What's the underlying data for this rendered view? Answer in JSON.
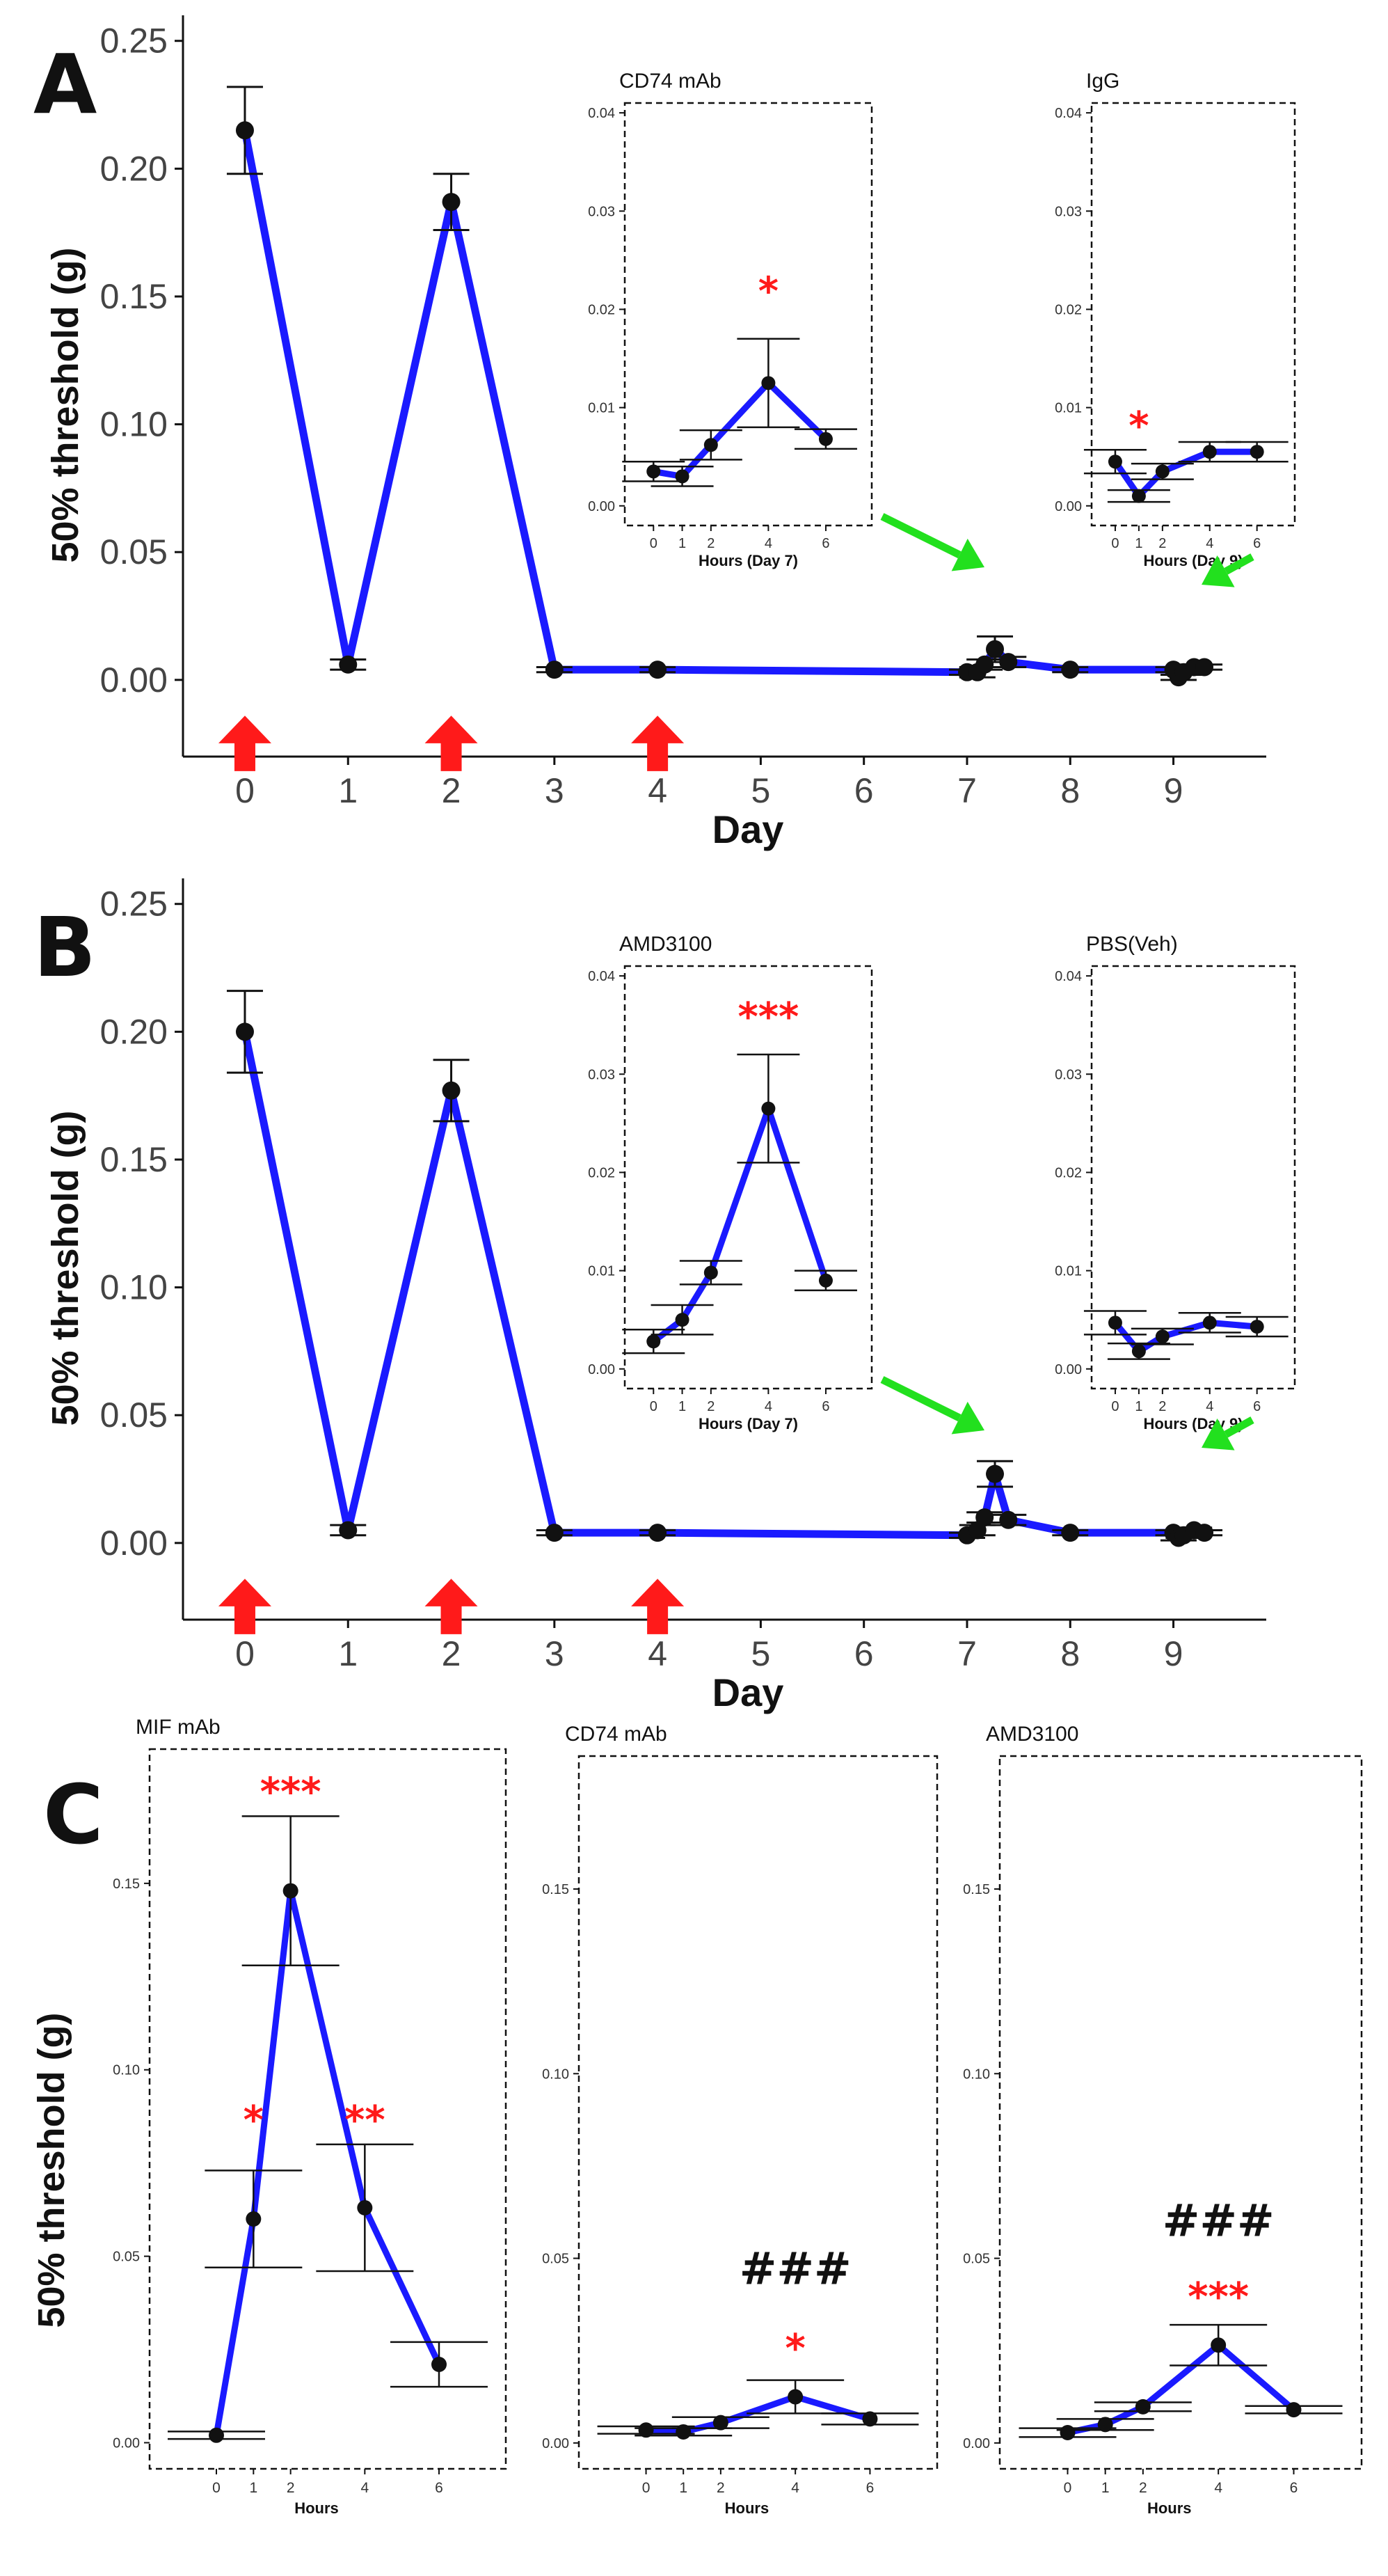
{
  "panels": [
    {
      "letter": "A",
      "chart_data": {
        "type": "line",
        "ylabel": "50% threshold (g)",
        "xlabel": "Day",
        "ylim": [
          -0.03,
          0.26
        ],
        "xlim": [
          -0.6,
          9.9
        ],
        "y_ticks": [
          0.0,
          0.05,
          0.1,
          0.15,
          0.2,
          0.25
        ],
        "y_tick_labels": [
          "0.00",
          "0.05",
          "0.10",
          "0.15",
          "0.20",
          "0.25"
        ],
        "x_ticks": [
          0,
          1,
          2,
          3,
          4,
          5,
          6,
          7,
          8,
          9
        ],
        "x_tick_labels": [
          "0",
          "1",
          "2",
          "3",
          "4",
          "5",
          "6",
          "7",
          "8",
          "9"
        ],
        "series_color": "#1a1aff",
        "points": [
          {
            "x": 0,
            "y": 0.215,
            "err": 0.017
          },
          {
            "x": 1,
            "y": 0.006,
            "err": 0.002
          },
          {
            "x": 2,
            "y": 0.187,
            "err": 0.011
          },
          {
            "x": 3,
            "y": 0.004,
            "err": 0.001
          },
          {
            "x": 4,
            "y": 0.004,
            "err": 0.001
          },
          {
            "x": 7,
            "y": 0.003,
            "err": 0.001
          },
          {
            "x": 7.1,
            "y": 0.003,
            "err": 0.002
          },
          {
            "x": 7.17,
            "y": 0.006,
            "err": 0.002
          },
          {
            "x": 7.27,
            "y": 0.012,
            "err": 0.005
          },
          {
            "x": 7.4,
            "y": 0.007,
            "err": 0.002
          },
          {
            "x": 8,
            "y": 0.004,
            "err": 0.001
          },
          {
            "x": 9,
            "y": 0.004,
            "err": 0.001
          },
          {
            "x": 9.05,
            "y": 0.001,
            "err": 0.001
          },
          {
            "x": 9.1,
            "y": 0.003,
            "err": 0.001
          },
          {
            "x": 9.2,
            "y": 0.005,
            "err": 0.001
          },
          {
            "x": 9.3,
            "y": 0.005,
            "err": 0.001
          }
        ],
        "red_arrows_x": [
          0,
          2,
          4
        ],
        "red_arrow_color": "#ff1a1a",
        "green_arrow_color": "#22e01e",
        "insets": [
          {
            "title": "CD74 mAb",
            "xlabel": "Hours (Day 7)",
            "ylim": [
              -0.002,
              0.041
            ],
            "xlim": [
              -1,
              7.6
            ],
            "y_ticks": [
              0.0,
              0.01,
              0.02,
              0.03,
              0.04
            ],
            "y_tick_labels": [
              "0.00",
              "0.01",
              "0.02",
              "0.03",
              "0.04"
            ],
            "x_ticks": [
              0,
              1,
              2,
              4,
              6
            ],
            "x_tick_labels": [
              "0",
              "1",
              "2",
              "4",
              "6"
            ],
            "points": [
              {
                "x": 0,
                "y": 0.0035,
                "err": 0.001
              },
              {
                "x": 1,
                "y": 0.003,
                "err": 0.001
              },
              {
                "x": 2,
                "y": 0.0062,
                "err": 0.0015
              },
              {
                "x": 4,
                "y": 0.0125,
                "err": 0.0045
              },
              {
                "x": 6,
                "y": 0.0068,
                "err": 0.001
              }
            ],
            "annotations": [
              {
                "text": "*",
                "x": 4,
                "y": 0.0205,
                "color": "#ff1a1a"
              }
            ]
          },
          {
            "title": "IgG",
            "xlabel": "Hours (Day 9)",
            "ylim": [
              -0.002,
              0.041
            ],
            "xlim": [
              -1,
              7.6
            ],
            "y_ticks": [
              0.0,
              0.01,
              0.02,
              0.03,
              0.04
            ],
            "y_tick_labels": [
              "0.00",
              "0.01",
              "0.02",
              "0.03",
              "0.04"
            ],
            "x_ticks": [
              0,
              1,
              2,
              4,
              6
            ],
            "x_tick_labels": [
              "0",
              "1",
              "2",
              "4",
              "6"
            ],
            "points": [
              {
                "x": 0,
                "y": 0.0045,
                "err": 0.0012
              },
              {
                "x": 1,
                "y": 0.001,
                "err": 0.0006
              },
              {
                "x": 2,
                "y": 0.0035,
                "err": 0.0008
              },
              {
                "x": 4,
                "y": 0.0055,
                "err": 0.001
              },
              {
                "x": 6,
                "y": 0.0055,
                "err": 0.001
              }
            ],
            "annotations": [
              {
                "text": "*",
                "x": 1,
                "y": 0.0068,
                "color": "#ff1a1a"
              }
            ]
          }
        ]
      }
    },
    {
      "letter": "B",
      "chart_data": {
        "type": "line",
        "ylabel": "50% threshold (g)",
        "xlabel": "Day",
        "ylim": [
          -0.03,
          0.26
        ],
        "xlim": [
          -0.6,
          9.9
        ],
        "y_ticks": [
          0.0,
          0.05,
          0.1,
          0.15,
          0.2,
          0.25
        ],
        "y_tick_labels": [
          "0.00",
          "0.05",
          "0.10",
          "0.15",
          "0.20",
          "0.25"
        ],
        "x_ticks": [
          0,
          1,
          2,
          3,
          4,
          5,
          6,
          7,
          8,
          9
        ],
        "x_tick_labels": [
          "0",
          "1",
          "2",
          "3",
          "4",
          "5",
          "6",
          "7",
          "8",
          "9"
        ],
        "series_color": "#1a1aff",
        "points": [
          {
            "x": 0,
            "y": 0.2,
            "err": 0.016
          },
          {
            "x": 1,
            "y": 0.005,
            "err": 0.002
          },
          {
            "x": 2,
            "y": 0.177,
            "err": 0.012
          },
          {
            "x": 3,
            "y": 0.004,
            "err": 0.001
          },
          {
            "x": 4,
            "y": 0.004,
            "err": 0.001
          },
          {
            "x": 7,
            "y": 0.003,
            "err": 0.001
          },
          {
            "x": 7.1,
            "y": 0.005,
            "err": 0.002
          },
          {
            "x": 7.17,
            "y": 0.01,
            "err": 0.002
          },
          {
            "x": 7.27,
            "y": 0.027,
            "err": 0.005
          },
          {
            "x": 7.4,
            "y": 0.009,
            "err": 0.002
          },
          {
            "x": 8,
            "y": 0.004,
            "err": 0.001
          },
          {
            "x": 9,
            "y": 0.004,
            "err": 0.001
          },
          {
            "x": 9.05,
            "y": 0.002,
            "err": 0.001
          },
          {
            "x": 9.1,
            "y": 0.003,
            "err": 0.001
          },
          {
            "x": 9.2,
            "y": 0.005,
            "err": 0.001
          },
          {
            "x": 9.3,
            "y": 0.004,
            "err": 0.001
          }
        ],
        "red_arrows_x": [
          0,
          2,
          4
        ],
        "red_arrow_color": "#ff1a1a",
        "green_arrow_color": "#22e01e",
        "insets": [
          {
            "title": "AMD3100",
            "xlabel": "Hours (Day 7)",
            "ylim": [
              -0.002,
              0.041
            ],
            "xlim": [
              -1,
              7.6
            ],
            "y_ticks": [
              0.0,
              0.01,
              0.02,
              0.03,
              0.04
            ],
            "y_tick_labels": [
              "0.00",
              "0.01",
              "0.02",
              "0.03",
              "0.04"
            ],
            "x_ticks": [
              0,
              1,
              2,
              4,
              6
            ],
            "x_tick_labels": [
              "0",
              "1",
              "2",
              "4",
              "6"
            ],
            "points": [
              {
                "x": 0,
                "y": 0.0028,
                "err": 0.0012
              },
              {
                "x": 1,
                "y": 0.005,
                "err": 0.0015
              },
              {
                "x": 2,
                "y": 0.0098,
                "err": 0.0012
              },
              {
                "x": 4,
                "y": 0.0265,
                "err": 0.0055
              },
              {
                "x": 6,
                "y": 0.009,
                "err": 0.001
              }
            ],
            "annotations": [
              {
                "text": "***",
                "x": 4,
                "y": 0.0345,
                "color": "#ff1a1a"
              }
            ]
          },
          {
            "title": "PBS(Veh)",
            "xlabel": "Hours (Day 9)",
            "ylim": [
              -0.002,
              0.041
            ],
            "xlim": [
              -1,
              7.6
            ],
            "y_ticks": [
              0.0,
              0.01,
              0.02,
              0.03,
              0.04
            ],
            "y_tick_labels": [
              "0.00",
              "0.01",
              "0.02",
              "0.03",
              "0.04"
            ],
            "x_ticks": [
              0,
              1,
              2,
              4,
              6
            ],
            "x_tick_labels": [
              "0",
              "1",
              "2",
              "4",
              "6"
            ],
            "points": [
              {
                "x": 0,
                "y": 0.0047,
                "err": 0.0012
              },
              {
                "x": 1,
                "y": 0.0018,
                "err": 0.0008
              },
              {
                "x": 2,
                "y": 0.0033,
                "err": 0.0008
              },
              {
                "x": 4,
                "y": 0.0047,
                "err": 0.001
              },
              {
                "x": 6,
                "y": 0.0043,
                "err": 0.001
              }
            ],
            "annotations": []
          }
        ]
      }
    },
    {
      "letter": "C",
      "chart_data": {
        "type": "line",
        "ylabel": "50% threshold (g)",
        "xlabel": "Hours",
        "series_color": "#1a1aff",
        "subplots": [
          {
            "title": "MIF mAb",
            "ylim": [
              -0.007,
              0.186
            ],
            "xlim": [
              -1.8,
              7.8
            ],
            "y_ticks": [
              0.0,
              0.05,
              0.1,
              0.15
            ],
            "y_tick_labels": [
              "0.00",
              "0.05",
              "0.10",
              "0.15"
            ],
            "x_ticks": [
              0,
              1,
              2,
              4,
              6
            ],
            "x_tick_labels": [
              "0",
              "1",
              "2",
              "4",
              "6"
            ],
            "xlabel": "Hours",
            "points": [
              {
                "x": 0,
                "y": 0.002,
                "err": 0.001
              },
              {
                "x": 1,
                "y": 0.06,
                "err": 0.013
              },
              {
                "x": 2,
                "y": 0.148,
                "err": 0.02
              },
              {
                "x": 4,
                "y": 0.063,
                "err": 0.017
              },
              {
                "x": 6,
                "y": 0.021,
                "err": 0.006
              }
            ],
            "annotations": [
              {
                "text": "*",
                "x": 1,
                "y": 0.083,
                "color": "#ff1a1a"
              },
              {
                "text": "***",
                "x": 2,
                "y": 0.171,
                "color": "#ff1a1a"
              },
              {
                "text": "**",
                "x": 4,
                "y": 0.083,
                "color": "#ff1a1a"
              }
            ]
          },
          {
            "title": "CD74 mAb",
            "ylim": [
              -0.007,
              0.186
            ],
            "xlim": [
              -1.8,
              7.8
            ],
            "y_ticks": [
              0.0,
              0.05,
              0.1,
              0.15
            ],
            "y_tick_labels": [
              "0.00",
              "0.05",
              "0.10",
              "0.15"
            ],
            "x_ticks": [
              0,
              1,
              2,
              4,
              6
            ],
            "x_tick_labels": [
              "0",
              "1",
              "2",
              "4",
              "6"
            ],
            "xlabel": "Hours",
            "points": [
              {
                "x": 0,
                "y": 0.0035,
                "err": 0.001
              },
              {
                "x": 1,
                "y": 0.003,
                "err": 0.001
              },
              {
                "x": 2,
                "y": 0.0055,
                "err": 0.0015
              },
              {
                "x": 4,
                "y": 0.0125,
                "err": 0.0045
              },
              {
                "x": 6,
                "y": 0.0065,
                "err": 0.0015
              }
            ],
            "annotations": [
              {
                "text": "*",
                "x": 4,
                "y": 0.022,
                "color": "#ff1a1a"
              },
              {
                "text": "###",
                "x": 4,
                "y": 0.043,
                "color": "#111111"
              }
            ]
          },
          {
            "title": "AMD3100",
            "ylim": [
              -0.007,
              0.186
            ],
            "xlim": [
              -1.8,
              7.8
            ],
            "y_ticks": [
              0.0,
              0.05,
              0.1,
              0.15
            ],
            "y_tick_labels": [
              "0.00",
              "0.05",
              "0.10",
              "0.15"
            ],
            "x_ticks": [
              0,
              1,
              2,
              4,
              6
            ],
            "x_tick_labels": [
              "0",
              "1",
              "2",
              "4",
              "6"
            ],
            "xlabel": "Hours",
            "points": [
              {
                "x": 0,
                "y": 0.0028,
                "err": 0.0012
              },
              {
                "x": 1,
                "y": 0.005,
                "err": 0.0015
              },
              {
                "x": 2,
                "y": 0.0098,
                "err": 0.0012
              },
              {
                "x": 4,
                "y": 0.0265,
                "err": 0.0055
              },
              {
                "x": 6,
                "y": 0.009,
                "err": 0.001
              }
            ],
            "annotations": [
              {
                "text": "***",
                "x": 4,
                "y": 0.036,
                "color": "#ff1a1a"
              },
              {
                "text": "###",
                "x": 4,
                "y": 0.056,
                "color": "#111111"
              }
            ]
          }
        ]
      }
    }
  ]
}
